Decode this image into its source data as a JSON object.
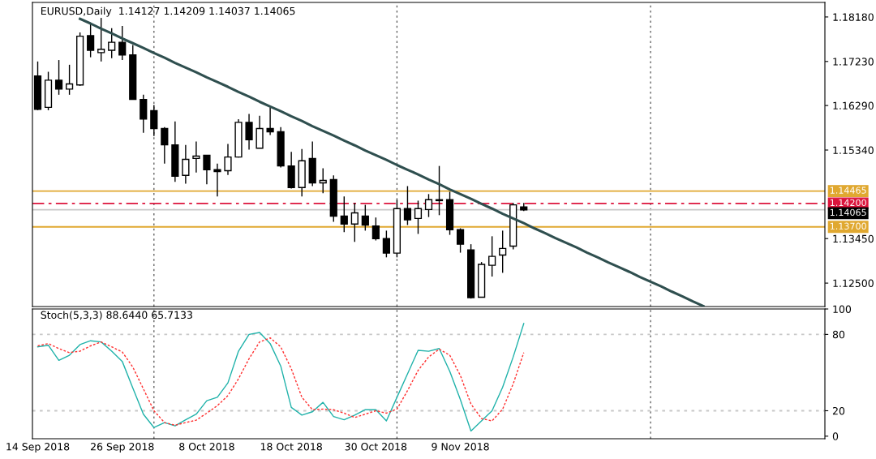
{
  "chart_data": [
    {
      "type": "candlestick",
      "grid": "x",
      "title": "EURUSD,Daily  1.14127 1.14209 1.14037 1.14065",
      "categories": [
        null,
        null,
        null,
        null,
        null,
        null,
        null,
        null,
        null,
        null,
        null,
        null,
        null,
        null,
        null,
        null,
        null,
        null,
        null,
        null,
        null,
        null,
        null,
        null,
        null,
        null,
        null,
        null,
        null,
        null,
        null,
        null,
        null,
        null,
        null,
        null,
        null,
        null,
        null,
        null,
        null,
        null,
        null,
        null,
        null,
        null,
        null,
        null,
        null,
        null,
        null,
        null,
        null,
        null,
        null,
        null,
        null,
        null,
        null,
        null,
        null,
        null,
        null,
        null,
        null,
        null,
        null,
        null,
        null,
        null,
        null,
        null,
        null,
        null,
        null
      ],
      "ohlc": [
        [
          1.1692,
          1.1723,
          1.1619,
          1.1621
        ],
        [
          1.1625,
          1.1701,
          1.1619,
          1.1683
        ],
        [
          1.1683,
          1.1726,
          1.1652,
          1.1664
        ],
        [
          1.1664,
          1.1716,
          1.1652,
          1.1675
        ],
        [
          1.1673,
          1.1785,
          1.1671,
          1.1777
        ],
        [
          1.1778,
          1.1804,
          1.1732,
          1.1747
        ],
        [
          1.1742,
          1.1816,
          1.1723,
          1.1749
        ],
        [
          1.1747,
          1.1794,
          1.173,
          1.1764
        ],
        [
          1.1764,
          1.1799,
          1.1726,
          1.1737
        ],
        [
          1.1737,
          1.1758,
          1.1642,
          1.1642
        ],
        [
          1.1642,
          1.1652,
          1.1571,
          1.16
        ],
        [
          1.1618,
          1.163,
          1.1564,
          1.158
        ],
        [
          1.158,
          1.1583,
          1.1505,
          1.1545
        ],
        [
          1.1545,
          1.1595,
          1.1466,
          1.1478
        ],
        [
          1.148,
          1.1545,
          1.1462,
          1.1514
        ],
        [
          1.1516,
          1.1552,
          1.1486,
          1.1521
        ],
        [
          1.1523,
          1.1523,
          1.1461,
          1.1492
        ],
        [
          1.1492,
          1.1505,
          1.1435,
          1.1488
        ],
        [
          1.149,
          1.1547,
          1.1481,
          1.1519
        ],
        [
          1.1519,
          1.16,
          1.1518,
          1.1593
        ],
        [
          1.1593,
          1.1611,
          1.1535,
          1.1556
        ],
        [
          1.1538,
          1.1607,
          1.1538,
          1.158
        ],
        [
          1.158,
          1.1625,
          1.1566,
          1.1573
        ],
        [
          1.1573,
          1.1583,
          1.1497,
          1.15
        ],
        [
          1.15,
          1.153,
          1.1452,
          1.1454
        ],
        [
          1.1454,
          1.1536,
          1.1435,
          1.1511
        ],
        [
          1.1516,
          1.1552,
          1.1457,
          1.1464
        ],
        [
          1.1464,
          1.1495,
          1.1442,
          1.1469
        ],
        [
          1.1471,
          1.148,
          1.1381,
          1.1393
        ],
        [
          1.1393,
          1.1435,
          1.1359,
          1.1376
        ],
        [
          1.1376,
          1.1421,
          1.1338,
          1.14
        ],
        [
          1.1393,
          1.1417,
          1.1362,
          1.1374
        ],
        [
          1.1372,
          1.139,
          1.1341,
          1.1345
        ],
        [
          1.1345,
          1.1362,
          1.1305,
          1.1314
        ],
        [
          1.1314,
          1.1428,
          1.1305,
          1.1409
        ],
        [
          1.1409,
          1.1457,
          1.1374,
          1.1385
        ],
        [
          1.1388,
          1.1426,
          1.1355,
          1.1409
        ],
        [
          1.1407,
          1.144,
          1.1391,
          1.1428
        ],
        [
          1.1428,
          1.15,
          1.1395,
          1.1426
        ],
        [
          1.1428,
          1.1445,
          1.1353,
          1.1364
        ],
        [
          1.1364,
          1.1367,
          1.1315,
          1.1333
        ],
        [
          1.1321,
          1.1333,
          1.1217,
          1.1219
        ],
        [
          1.122,
          1.1295,
          1.1219,
          1.129
        ],
        [
          1.1288,
          1.135,
          1.1264,
          1.1307
        ],
        [
          1.131,
          1.1362,
          1.1272,
          1.1324
        ],
        [
          1.1329,
          1.1421,
          1.1322,
          1.1417
        ],
        [
          1.14127,
          1.14209,
          1.14037,
          1.14065
        ],
        null,
        null,
        null,
        null,
        null,
        null,
        null,
        null,
        null,
        null,
        null,
        null,
        null,
        null,
        null,
        null,
        null,
        null,
        null,
        null,
        null,
        null,
        null,
        null,
        null,
        null,
        null,
        null
      ],
      "series": [
        {
          "type": "line",
          "color": "#2f4f4f",
          "values": [
            null,
            null,
            null,
            null,
            1.1814,
            1.1804,
            1.1793,
            1.1783,
            1.1772,
            1.1762,
            1.1752,
            1.1741,
            1.1731,
            1.172,
            1.171,
            1.17,
            1.1689,
            1.1679,
            1.1669,
            1.1658,
            1.1648,
            1.1637,
            1.1627,
            1.1617,
            1.1606,
            1.1596,
            1.1585,
            1.1575,
            1.1565,
            1.1554,
            1.1544,
            1.1533,
            1.1523,
            1.1513,
            1.1502,
            1.1492,
            1.1482,
            1.1471,
            1.1461,
            1.145,
            1.144,
            1.143,
            1.1419,
            1.1409,
            1.1398,
            1.1388,
            1.1378,
            1.1367,
            1.1357,
            1.1346,
            1.1336,
            1.1326,
            1.1315,
            1.1305,
            1.1294,
            1.1284,
            1.1274,
            1.1263,
            1.1253,
            1.1243,
            1.1232,
            1.1222,
            1.1211,
            1.1201,
            null,
            null,
            null,
            null,
            null,
            null,
            null,
            null,
            null,
            null,
            null
          ]
        }
      ],
      "ylim": [
        1.12,
        1.1849
      ],
      "yticks": [
        {
          "value": 1.1818,
          "label": "1.18180"
        },
        {
          "value": 1.1723,
          "label": "1.17230"
        },
        {
          "value": 1.1629,
          "label": "1.16290"
        },
        {
          "value": 1.1534,
          "label": "1.15340"
        },
        {
          "value": 1.1345,
          "label": "1.13450"
        },
        {
          "value": 1.125,
          "label": "1.12500"
        }
      ],
      "ref_lines": [
        {
          "axis": "y",
          "value": 1.14465,
          "label": "1.14465",
          "color": "#e0a830",
          "line_style": "solid"
        },
        {
          "axis": "y",
          "value": 1.142,
          "label": "1.14200",
          "color": "#dc143c",
          "line_style": "dashdot"
        },
        {
          "axis": "y",
          "value": 1.14065,
          "label": "1.14065",
          "color": "#c8c8c8",
          "line_style": "solid"
        },
        {
          "axis": "y",
          "value": 1.137,
          "label": "1.13700",
          "color": "#e0a830",
          "line_style": "solid"
        }
      ],
      "tick_labels": "y"
    },
    {
      "type": "line",
      "grid": "x",
      "title": "Stoch(5,3,3) 88.6440 65.7133",
      "categories": [
        "14 Sep 2018",
        null,
        null,
        null,
        null,
        null,
        null,
        null,
        "26 Sep 2018",
        null,
        null,
        null,
        null,
        null,
        null,
        null,
        "8 Oct 2018",
        null,
        null,
        null,
        null,
        null,
        null,
        null,
        "18 Oct 2018",
        null,
        null,
        null,
        null,
        null,
        null,
        null,
        "30 Oct 2018",
        null,
        null,
        null,
        null,
        null,
        null,
        null,
        "9 Nov 2018",
        null,
        null,
        null,
        null,
        null,
        null,
        null,
        null,
        null,
        null,
        null,
        null,
        null,
        null,
        null,
        null,
        null,
        null,
        null,
        null,
        null,
        null,
        null,
        null,
        null,
        null,
        null,
        null,
        null,
        null,
        null,
        null,
        null,
        null
      ],
      "series": [
        {
          "color": "#20b2aa",
          "line_style": "solid",
          "values": [
            70.2,
            71.5,
            59.6,
            63.6,
            72.0,
            75.0,
            74.1,
            66.8,
            58.8,
            37.9,
            17.3,
            6.8,
            10.7,
            8.1,
            12.9,
            17.3,
            27.9,
            30.6,
            41.9,
            66.8,
            80.0,
            81.5,
            72.8,
            55.1,
            22.6,
            16.6,
            19.2,
            26.6,
            15.5,
            12.9,
            16.6,
            20.8,
            20.8,
            12.0,
            30.6,
            49.0,
            67.5,
            66.8,
            68.9,
            50.9,
            28.7,
            4.1,
            12.0,
            20.0,
            38.5,
            62.3,
            88.6,
            null,
            null,
            null,
            null,
            null,
            null,
            null,
            null,
            null,
            null,
            null,
            null,
            null,
            null,
            null,
            null,
            null,
            null,
            null,
            null,
            null,
            null,
            null,
            null,
            null,
            null,
            null,
            null
          ]
        },
        {
          "color": "#ff3030",
          "line_style": "dashed",
          "values": [
            71.0,
            72.8,
            68.9,
            65.7,
            66.8,
            71.0,
            74.1,
            70.2,
            66.2,
            54.3,
            37.2,
            20.0,
            10.7,
            8.6,
            10.7,
            12.6,
            18.1,
            24.0,
            31.9,
            45.1,
            60.9,
            74.1,
            77.3,
            70.2,
            53.0,
            30.6,
            20.8,
            21.3,
            20.8,
            18.1,
            14.7,
            17.3,
            20.0,
            18.1,
            21.3,
            35.8,
            51.7,
            62.3,
            68.4,
            63.6,
            47.7,
            25.3,
            13.9,
            12.0,
            21.3,
            41.1,
            65.7,
            null,
            null,
            null,
            null,
            null,
            null,
            null,
            null,
            null,
            null,
            null,
            null,
            null,
            null,
            null,
            null,
            null,
            null,
            null,
            null,
            null,
            null,
            null,
            null,
            null,
            null,
            null,
            null
          ]
        }
      ],
      "ylim": [
        -2,
        100
      ],
      "yticks": [
        0,
        20,
        80,
        100
      ],
      "ref_lines": [
        {
          "axis": "y",
          "value": 80,
          "color": "#c8c8c8",
          "line_style": "dotted"
        },
        {
          "axis": "y",
          "value": 20,
          "color": "#c8c8c8",
          "line_style": "dotted"
        }
      ]
    }
  ]
}
